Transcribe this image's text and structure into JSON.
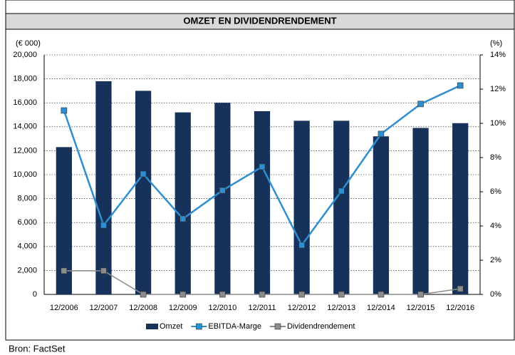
{
  "chart_data": {
    "type": "bar",
    "title": "OMZET EN DIVIDENDRENDEMENT",
    "y_label": "(€ 000)",
    "y2_label": "(%)",
    "source": "Bron: FactSet",
    "categories": [
      "12/2006",
      "12/2007",
      "12/2008",
      "12/2009",
      "12/2010",
      "12/2011",
      "12/2012",
      "12/2013",
      "12/2014",
      "12/2015",
      "12/2016"
    ],
    "series": [
      {
        "name": "Omzet",
        "type": "bar",
        "color": "#17325a",
        "values": [
          12300,
          17800,
          17000,
          15200,
          16000,
          15300,
          14500,
          14500,
          13200,
          13900,
          14300
        ]
      },
      {
        "name": "EBITDA-Marge",
        "type": "line",
        "axis": "y2",
        "color": "#2e8fd0",
        "values": [
          10.75,
          4.04,
          7.04,
          4.42,
          6.08,
          7.46,
          2.88,
          6.04,
          9.38,
          11.13,
          12.21
        ]
      },
      {
        "name": "Dividendrendement",
        "type": "line",
        "axis": "y2",
        "color": "#8c8c8c",
        "values": [
          1.38,
          1.38,
          0,
          0,
          0,
          0,
          0,
          0,
          0,
          0,
          0.33
        ]
      }
    ],
    "ylim": [
      0,
      20000
    ],
    "yticks": [
      0,
      {
        "value": 2000,
        "label": "2,000"
      },
      {
        "value": 4000,
        "label": "4,000"
      },
      {
        "value": 6000,
        "label": "6,000"
      },
      {
        "value": 8000,
        "label": "8,000"
      },
      {
        "value": 10000,
        "label": "10,000"
      },
      {
        "value": 12000,
        "label": "12,000"
      },
      {
        "value": 14000,
        "label": "14,000"
      },
      {
        "value": 16000,
        "label": "16,000"
      },
      {
        "value": 18000,
        "label": "18,000"
      },
      {
        "value": 20000,
        "label": "20,000"
      }
    ],
    "y2lim": [
      0,
      14
    ],
    "y2ticks": [
      {
        "value": 0,
        "label": "0%"
      },
      {
        "value": 2,
        "label": "2%"
      },
      {
        "value": 4,
        "label": "4%"
      },
      {
        "value": 6,
        "label": "6%"
      },
      {
        "value": 8,
        "label": "8%"
      },
      {
        "value": 10,
        "label": "10%"
      },
      {
        "value": 12,
        "label": "12%"
      },
      {
        "value": 14,
        "label": "14%"
      }
    ],
    "grid": true,
    "legend": "bottom"
  }
}
